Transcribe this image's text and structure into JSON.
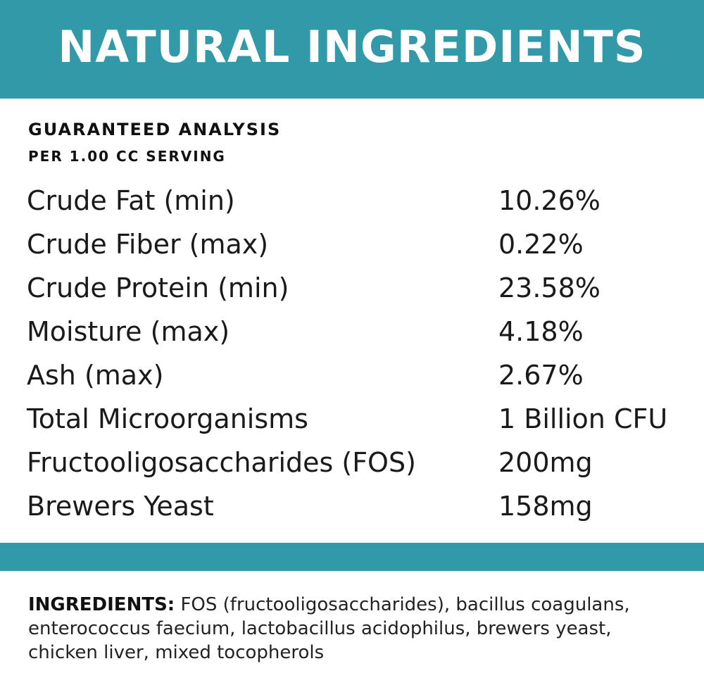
{
  "banner": {
    "title": "NATURAL INGREDIENTS"
  },
  "analysis": {
    "heading": "GUARANTEED ANALYSIS",
    "subheading": "PER 1.00 CC SERVING",
    "rows": [
      {
        "name": "Crude Fat (min)",
        "value": "10.26%"
      },
      {
        "name": "Crude Fiber (max)",
        "value": "0.22%"
      },
      {
        "name": "Crude Protein (min)",
        "value": "23.58%"
      },
      {
        "name": "Moisture (max)",
        "value": "4.18%"
      },
      {
        "name": "Ash (max)",
        "value": "2.67%"
      },
      {
        "name": "Total Microorganisms",
        "value": "1 Billion CFU"
      },
      {
        "name": "Fructooligosaccharides (FOS)",
        "value": "200mg"
      },
      {
        "name": "Brewers Yeast",
        "value": "158mg"
      }
    ]
  },
  "ingredients": {
    "label": "INGREDIENTS:",
    "text": " FOS (fructooligosaccharides), bacillus coagulans, enterococcus faecium, lactobacillus acidophilus, brewers yeast, chicken liver, mixed tocopherols"
  },
  "colors": {
    "accent": "#3199a8",
    "text": "#1a1a1a",
    "background": "#ffffff"
  }
}
